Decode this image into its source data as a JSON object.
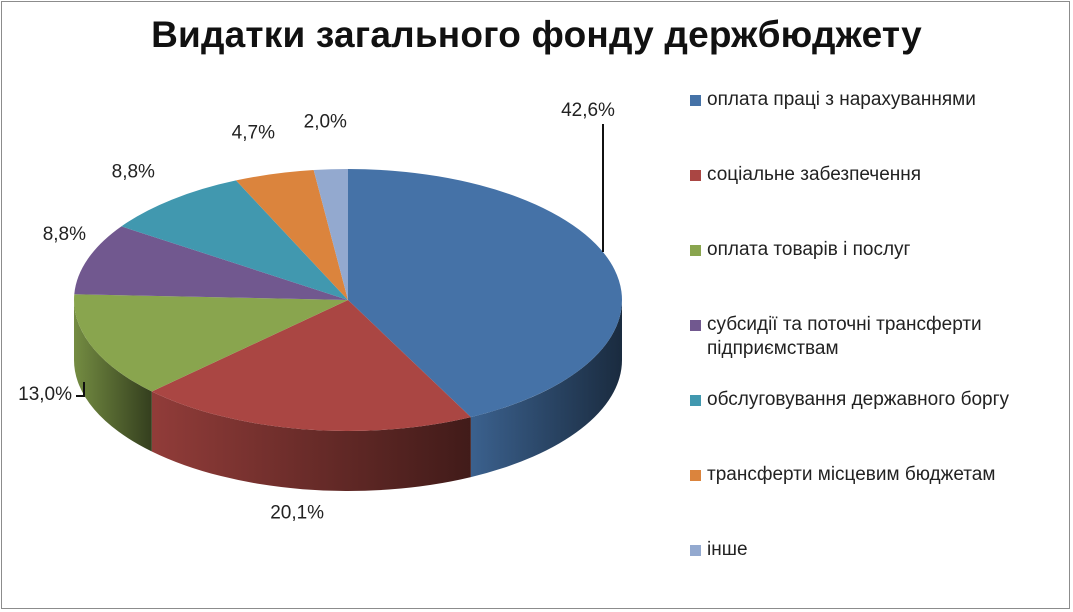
{
  "chart_data": {
    "type": "pie",
    "title": "Видатки загального фонду держбюджету",
    "categories": [
      "оплата праці з нарахуваннями",
      "соціальне забезпечення",
      "оплата товарів і послуг",
      "субсидії та поточні трансферти підприємствам",
      "обслуговування державного боргу",
      "трансферти місцевим бюджетам",
      "інше"
    ],
    "values": [
      42.6,
      20.1,
      13.0,
      8.8,
      8.8,
      4.7,
      2.0
    ],
    "labels": [
      "42,6%",
      "20,1%",
      "13,0%",
      "8,8%",
      "8,8%",
      "4,7%",
      "2,0%"
    ],
    "colors": [
      "#4572a7",
      "#aa4643",
      "#89a54e",
      "#71588f",
      "#4198af",
      "#db843d",
      "#93a9cf"
    ],
    "legend_position": "right",
    "style": "3d"
  }
}
